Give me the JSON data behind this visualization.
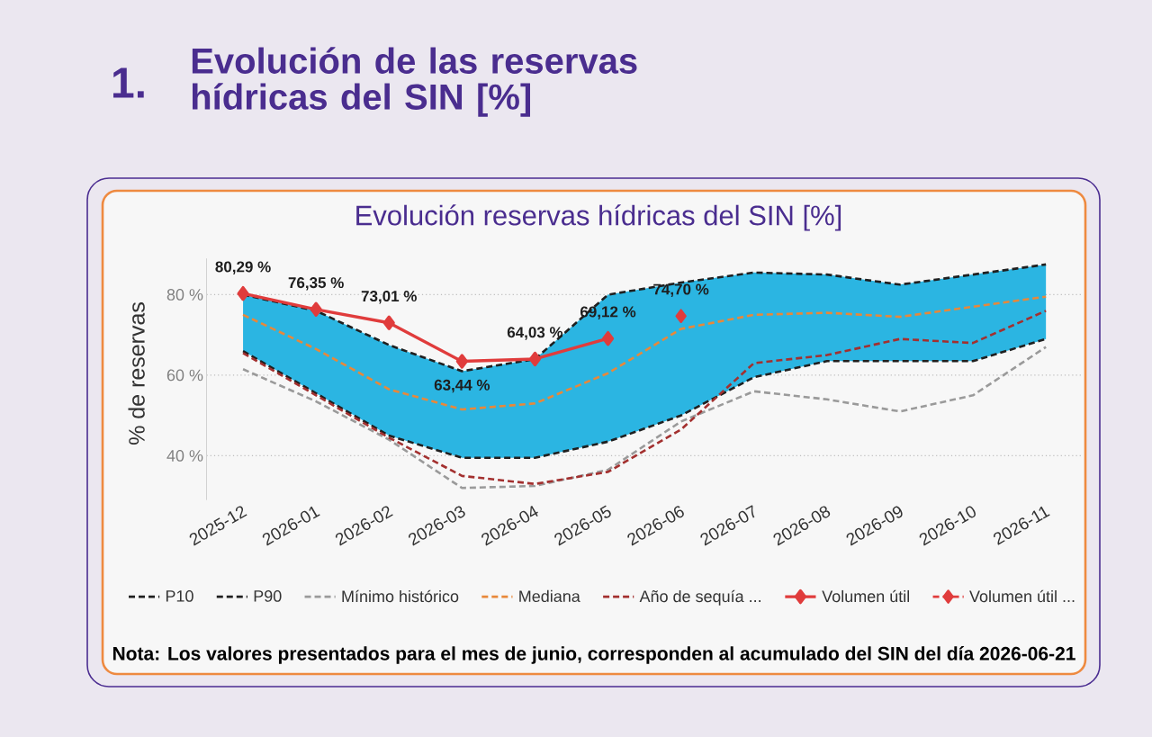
{
  "chart_data": {
    "type": "line",
    "title": "Evolución de las reservas hídricas del SIN [%]",
    "subtitle": "Evolución reservas hídricas del SIN [%]",
    "ylabel": "% de reservas",
    "annotations": [
      "1.",
      "Nota: Los valores presentados para el mes de junio, corresponden al acumulado del SIN del día 2026-06-21"
    ],
    "categories": [
      "2025-12",
      "2026-01",
      "2026-02",
      "2026-03",
      "2026-04",
      "2026-05",
      "2026-06",
      "2026-07",
      "2026-08",
      "2026-09",
      "2026-10",
      "2026-11"
    ],
    "ylim": [
      29,
      89
    ],
    "yticks": [
      {
        "value": 40,
        "label": "40 %"
      },
      {
        "value": 60,
        "label": "60 %"
      },
      {
        "value": 80,
        "label": "80 %"
      }
    ],
    "grid": "y",
    "legend": "bottom",
    "series": [
      {
        "name": "P10",
        "color": "#1f1f1f",
        "line_style": "dashed",
        "marker": "none",
        "values": [
          66,
          55.5,
          45,
          39.5,
          39.5,
          43.5,
          50,
          59.5,
          63.5,
          63.5,
          63.5,
          69
        ]
      },
      {
        "name": "P90",
        "color": "#1f1f1f",
        "line_style": "dashed",
        "marker": "none",
        "values": [
          80,
          76,
          67.5,
          61,
          64,
          80,
          83,
          85.5,
          85,
          82.5,
          85,
          87.5
        ]
      },
      {
        "name": "Mínimo histórico",
        "color": "#9a9a9a",
        "line_style": "dashed",
        "marker": "none",
        "values": [
          61.5,
          53.5,
          44,
          32,
          32.5,
          36.5,
          48.5,
          56,
          54,
          51,
          55,
          67
        ]
      },
      {
        "name": "Mediana",
        "color": "#e8883a",
        "line_style": "dashed",
        "marker": "none",
        "values": [
          75,
          66.5,
          56.5,
          51.5,
          53,
          60.5,
          71.5,
          75,
          75.5,
          74.5,
          77,
          79.5
        ],
        "lower": [
          66,
          55.5,
          45,
          39.5,
          39.5,
          43.5,
          50,
          59.5,
          63.5,
          63.5,
          63.5,
          69
        ],
        "upper": [
          80,
          76,
          67.5,
          61,
          64,
          80,
          83,
          85.5,
          85,
          82.5,
          85,
          87.5
        ]
      },
      {
        "name": "Año de sequía ...",
        "color": "#a3302f",
        "line_style": "dashed",
        "marker": "none",
        "values": [
          65.5,
          55,
          44.5,
          35,
          33,
          36,
          46.5,
          63,
          65,
          69,
          68,
          76
        ]
      },
      {
        "name": "Volumen útil",
        "color": "#e03c3c",
        "line_style": "solid",
        "marker": "diamond",
        "values": [
          80.29,
          76.35,
          73.01,
          63.44,
          64.03,
          69.12,
          null,
          null,
          null,
          null,
          null,
          null
        ],
        "value_labels": [
          "80,29 %",
          "76,35 %",
          "73,01 %",
          "63,44 %",
          "64,03 %",
          "69,12 %",
          null,
          null,
          null,
          null,
          null,
          null
        ]
      },
      {
        "name": "Volumen útil ...",
        "color": "#e03c3c",
        "line_style": "dashed",
        "marker": "diamond",
        "values": [
          null,
          null,
          null,
          null,
          null,
          null,
          74.7,
          null,
          null,
          null,
          null,
          null
        ],
        "value_labels": [
          null,
          null,
          null,
          null,
          null,
          null,
          "74,70 %",
          null,
          null,
          null,
          null,
          null
        ]
      }
    ]
  }
}
